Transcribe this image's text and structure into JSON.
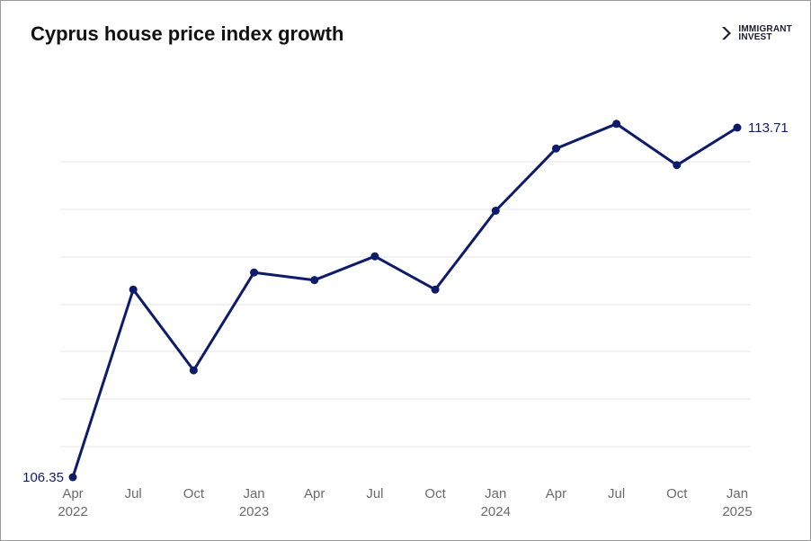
{
  "chart_data": {
    "type": "line",
    "title": "Cyprus house price index growth",
    "xlabel": "",
    "ylabel": "",
    "grid": true,
    "legend": "none",
    "x": [
      "Apr 2022",
      "Jul 2022",
      "Oct 2022",
      "Jan 2023",
      "Apr 2023",
      "Jul 2023",
      "Oct 2023",
      "Jan 2024",
      "Apr 2024",
      "Jul 2024",
      "Oct 2024",
      "Jan 2025"
    ],
    "x_tick_labels": [
      {
        "month": "Apr",
        "year": "2022"
      },
      {
        "month": "Jul",
        "year": ""
      },
      {
        "month": "Oct",
        "year": ""
      },
      {
        "month": "Jan",
        "year": "2023"
      },
      {
        "month": "Apr",
        "year": ""
      },
      {
        "month": "Jul",
        "year": ""
      },
      {
        "month": "Oct",
        "year": ""
      },
      {
        "month": "Jan",
        "year": "2024"
      },
      {
        "month": "Apr",
        "year": ""
      },
      {
        "month": "Jul",
        "year": ""
      },
      {
        "month": "Oct",
        "year": ""
      },
      {
        "month": "Jan",
        "year": "2025"
      }
    ],
    "series": [
      {
        "values": [
          106.35,
          110.3,
          108.6,
          110.66,
          110.5,
          111.0,
          110.3,
          111.96,
          113.27,
          113.79,
          112.92,
          113.71
        ]
      }
    ],
    "data_labels": [
      {
        "index": 0,
        "text": "106.35"
      },
      {
        "index": 11,
        "text": "113.71"
      }
    ],
    "ylim": [
      106.35,
      113.71
    ],
    "colors": {
      "line": "#0d1b6b",
      "label": "#0d1b6b",
      "tick": "#6b6b6b",
      "grid": "#e6e6e6"
    }
  },
  "logo": {
    "line1": "IMMIGRANT",
    "line2": "INVEST",
    "icon": "chevron-logo-icon"
  }
}
